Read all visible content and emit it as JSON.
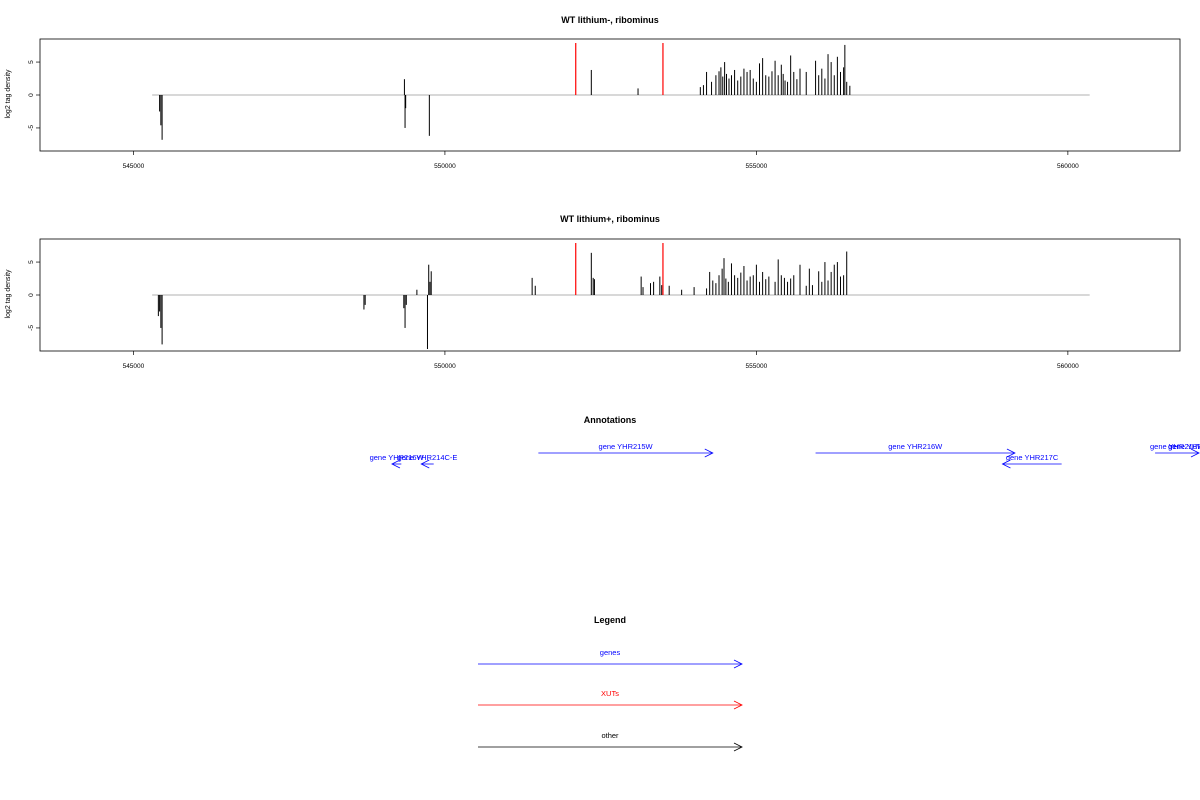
{
  "chart_data": [
    {
      "type": "bar",
      "title": "WT lithium-, ribominus",
      "ylabel": "log2 tag density",
      "xlim": [
        543500,
        561800
      ],
      "ylim": [
        -8.5,
        8.5
      ],
      "x_ticks": [
        545000,
        550000,
        555000,
        560000
      ],
      "x_tick_labels": [
        "545000",
        "550000",
        "555000",
        "560000"
      ],
      "y_ticks": [
        -5,
        0,
        5
      ],
      "y_tick_labels": [
        "-5",
        "0",
        "5"
      ],
      "baseline": [
        545300,
        560350
      ],
      "xut_marks": [
        552100,
        553500
      ],
      "bars": [
        [
          545420,
          -2.5
        ],
        [
          545440,
          -4.6
        ],
        [
          545460,
          -6.8
        ],
        [
          549350,
          2.4
        ],
        [
          549360,
          -5.0
        ],
        [
          549370,
          -2.0
        ],
        [
          549750,
          -6.2
        ],
        [
          552350,
          3.8
        ],
        [
          553100,
          1.0
        ],
        [
          554100,
          1.2
        ],
        [
          554150,
          1.5
        ],
        [
          554200,
          3.5
        ],
        [
          554280,
          2.0
        ],
        [
          554350,
          3.0
        ],
        [
          554400,
          3.6
        ],
        [
          554430,
          4.2
        ],
        [
          554460,
          2.8
        ],
        [
          554490,
          5.0
        ],
        [
          554520,
          3.2
        ],
        [
          554560,
          2.5
        ],
        [
          554600,
          3.0
        ],
        [
          554650,
          3.8
        ],
        [
          554700,
          2.2
        ],
        [
          554750,
          2.8
        ],
        [
          554800,
          4.0
        ],
        [
          554850,
          3.5
        ],
        [
          554900,
          3.8
        ],
        [
          554950,
          2.5
        ],
        [
          555000,
          2.0
        ],
        [
          555050,
          4.8
        ],
        [
          555100,
          5.6
        ],
        [
          555150,
          3.0
        ],
        [
          555200,
          2.8
        ],
        [
          555250,
          3.6
        ],
        [
          555300,
          5.2
        ],
        [
          555350,
          3.0
        ],
        [
          555400,
          4.6
        ],
        [
          555430,
          3.2
        ],
        [
          555460,
          2.2
        ],
        [
          555500,
          2.0
        ],
        [
          555550,
          6.0
        ],
        [
          555600,
          3.5
        ],
        [
          555650,
          2.4
        ],
        [
          555700,
          4.0
        ],
        [
          555800,
          3.5
        ],
        [
          555950,
          5.2
        ],
        [
          556000,
          3.0
        ],
        [
          556050,
          4.0
        ],
        [
          556100,
          2.5
        ],
        [
          556150,
          6.2
        ],
        [
          556200,
          5.0
        ],
        [
          556250,
          3.0
        ],
        [
          556300,
          5.8
        ],
        [
          556350,
          3.5
        ],
        [
          556400,
          4.2
        ],
        [
          556420,
          7.6
        ],
        [
          556450,
          2.0
        ],
        [
          556500,
          1.4
        ]
      ]
    },
    {
      "type": "bar",
      "title": "WT lithium+, ribominus",
      "ylabel": "log2 tag density",
      "xlim": [
        543500,
        561800
      ],
      "ylim": [
        -8.5,
        8.5
      ],
      "x_ticks": [
        545000,
        550000,
        555000,
        560000
      ],
      "x_tick_labels": [
        "545000",
        "550000",
        "555000",
        "560000"
      ],
      "y_ticks": [
        -5,
        0,
        5
      ],
      "y_tick_labels": [
        "-5",
        "0",
        "5"
      ],
      "baseline": [
        545300,
        560350
      ],
      "xut_marks": [
        552100,
        553500
      ],
      "bars": [
        [
          545400,
          -3.2
        ],
        [
          545420,
          -2.5
        ],
        [
          545440,
          -5.0
        ],
        [
          545460,
          -7.5
        ],
        [
          548700,
          -2.2
        ],
        [
          548720,
          -1.5
        ],
        [
          549340,
          -2.0
        ],
        [
          549360,
          -5.0
        ],
        [
          549380,
          -1.5
        ],
        [
          549550,
          0.8
        ],
        [
          549720,
          -8.2
        ],
        [
          549740,
          4.6
        ],
        [
          549760,
          2.0
        ],
        [
          549780,
          3.6
        ],
        [
          551400,
          2.6
        ],
        [
          551450,
          1.4
        ],
        [
          552350,
          6.4
        ],
        [
          552380,
          2.6
        ],
        [
          552400,
          2.4
        ],
        [
          553150,
          2.8
        ],
        [
          553180,
          1.2
        ],
        [
          553300,
          1.8
        ],
        [
          553350,
          2.0
        ],
        [
          553450,
          2.8
        ],
        [
          553480,
          1.5
        ],
        [
          553600,
          1.4
        ],
        [
          553800,
          0.8
        ],
        [
          554000,
          1.2
        ],
        [
          554200,
          1.0
        ],
        [
          554250,
          3.5
        ],
        [
          554300,
          2.2
        ],
        [
          554350,
          1.8
        ],
        [
          554400,
          3.0
        ],
        [
          554450,
          4.0
        ],
        [
          554480,
          5.6
        ],
        [
          554510,
          2.5
        ],
        [
          554550,
          2.0
        ],
        [
          554600,
          4.8
        ],
        [
          554650,
          3.0
        ],
        [
          554700,
          2.6
        ],
        [
          554750,
          3.4
        ],
        [
          554800,
          4.4
        ],
        [
          554850,
          2.2
        ],
        [
          554900,
          2.8
        ],
        [
          554950,
          3.0
        ],
        [
          555000,
          4.6
        ],
        [
          555050,
          2.0
        ],
        [
          555100,
          3.5
        ],
        [
          555150,
          2.4
        ],
        [
          555200,
          2.8
        ],
        [
          555300,
          2.0
        ],
        [
          555350,
          5.4
        ],
        [
          555400,
          3.0
        ],
        [
          555450,
          2.6
        ],
        [
          555500,
          2.0
        ],
        [
          555550,
          2.5
        ],
        [
          555600,
          3.0
        ],
        [
          555700,
          4.6
        ],
        [
          555800,
          1.4
        ],
        [
          555850,
          4.0
        ],
        [
          555900,
          1.5
        ],
        [
          556000,
          3.6
        ],
        [
          556050,
          2.0
        ],
        [
          556100,
          5.0
        ],
        [
          556150,
          2.2
        ],
        [
          556200,
          3.5
        ],
        [
          556250,
          4.6
        ],
        [
          556300,
          5.0
        ],
        [
          556350,
          2.8
        ],
        [
          556400,
          3.0
        ],
        [
          556450,
          6.6
        ]
      ]
    }
  ],
  "annotations": {
    "title": "Annotations",
    "genes": [
      {
        "label": "gene YHR216W",
        "start": 549300,
        "end": 549150,
        "strand": "-",
        "row": 2
      },
      {
        "label": "gene YHR214C-E",
        "start": 549820,
        "end": 549620,
        "strand": "-",
        "row": 2
      },
      {
        "label": "gene YHR215W",
        "start": 551500,
        "end": 554300,
        "strand": "+",
        "row": 1
      },
      {
        "label": "gene YHR216W",
        "start": 555950,
        "end": 559150,
        "strand": "+",
        "row": 1
      },
      {
        "label": "gene YHR217C",
        "start": 559900,
        "end": 558950,
        "strand": "-",
        "row": 2
      },
      {
        "label": "gene YHR218W",
        "start": 561400,
        "end": 565050,
        "strand": "+",
        "row": 1
      },
      {
        "label": "gene YHR218W-A",
        "start": 565100,
        "end": 565650,
        "strand": "+",
        "row": 1
      },
      {
        "label": "gen",
        "start": 566000,
        "end": 566500,
        "strand": "+",
        "row": 1
      }
    ]
  },
  "legend": {
    "title": "Legend",
    "items": [
      {
        "label": "genes",
        "color": "#0000ff"
      },
      {
        "label": "XUTs",
        "color": "#ff0000"
      },
      {
        "label": "other",
        "color": "#000000"
      }
    ]
  }
}
